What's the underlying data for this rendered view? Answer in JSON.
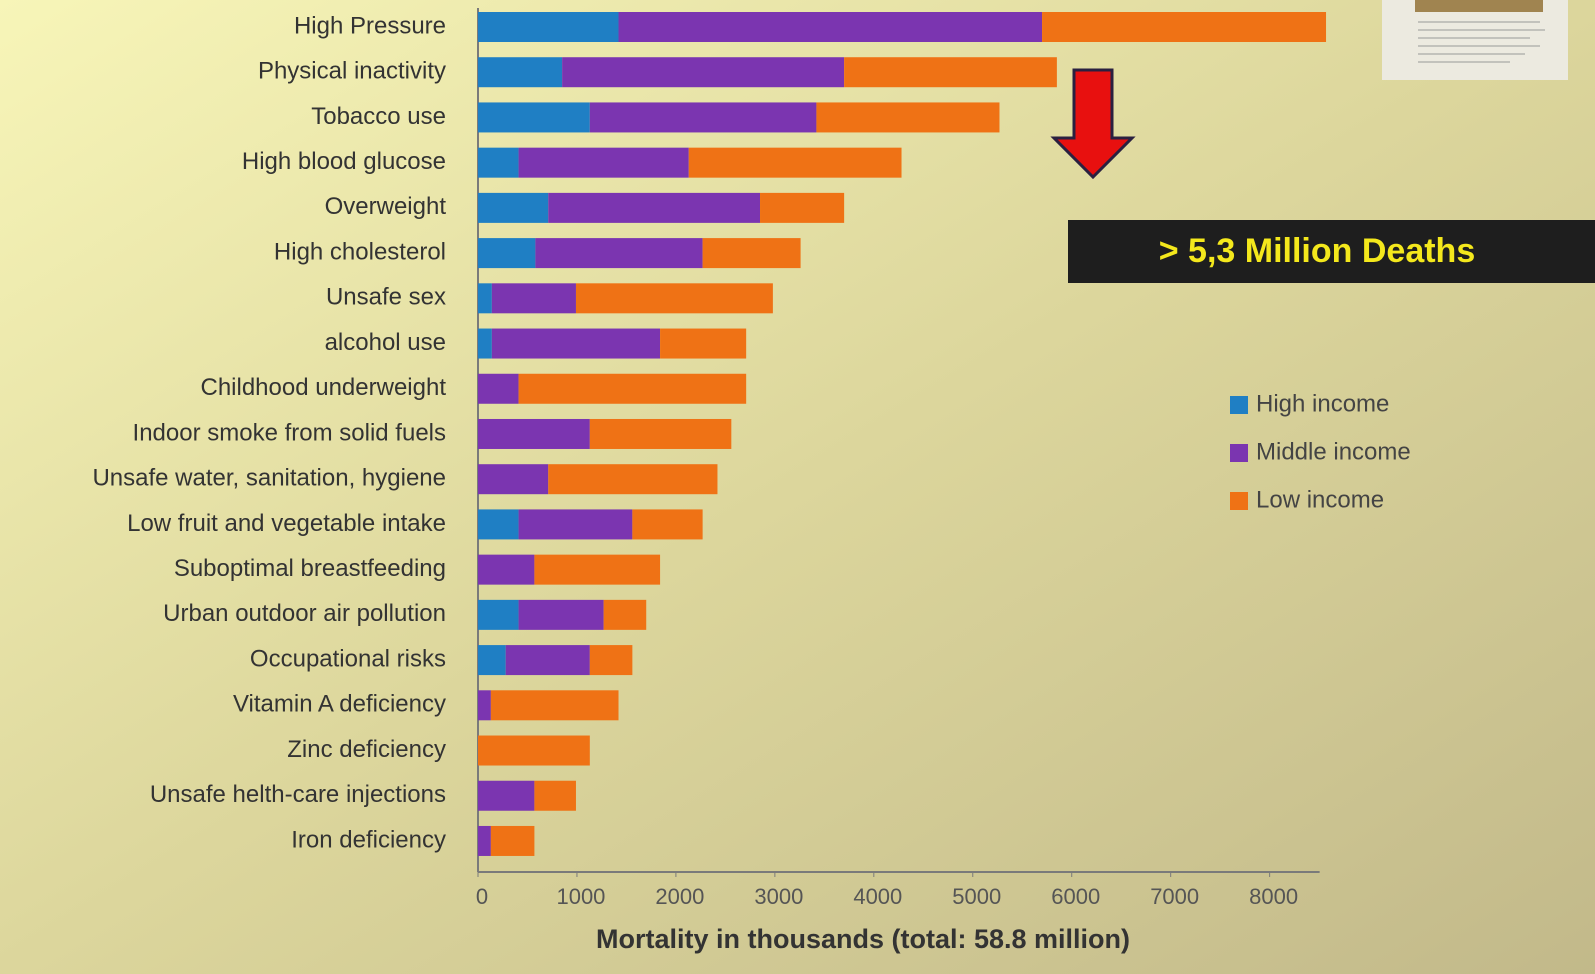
{
  "chart_data": {
    "type": "stacked-bar-horizontal",
    "x_label": "Mortality in thousands (total: 58.8 million)",
    "annotation": "> 5,3 Million Deaths",
    "categories": [
      "High Pressure",
      "Physical inactivity",
      "Tobacco use",
      "High blood glucose",
      "Overweight",
      "High cholesterol",
      "Unsafe sex",
      "alcohol use",
      "Childhood underweight",
      "Indoor smoke from solid fuels",
      "Unsafe water, sanitation, hygiene",
      "Low fruit and vegetable intake",
      "Suboptimal breastfeeding",
      "Urban outdoor air pollution",
      "Occupational risks",
      "Vitamin A deficiency",
      "Zinc deficiency",
      "Unsafe helth-care injections",
      "Iron deficiency"
    ],
    "series": [
      {
        "name": "High income",
        "color": "#1f7fc4",
        "values": [
          1420,
          850,
          1130,
          410,
          710,
          580,
          140,
          140,
          0,
          0,
          0,
          410,
          0,
          410,
          280,
          0,
          0,
          0,
          0
        ]
      },
      {
        "name": "Middle income",
        "color": "#7b35b0",
        "values": [
          4280,
          2850,
          2290,
          1720,
          2140,
          1690,
          850,
          1700,
          410,
          1130,
          710,
          1150,
          570,
          860,
          850,
          130,
          0,
          570,
          130
        ]
      },
      {
        "name": "Low income",
        "color": "#ef7215",
        "values": [
          2870,
          2150,
          1850,
          2150,
          850,
          990,
          1990,
          870,
          2300,
          1430,
          1710,
          710,
          1270,
          430,
          430,
          1290,
          1130,
          420,
          440
        ]
      }
    ],
    "xlim": [
      0,
      8600
    ],
    "xticks": [
      0,
      1000,
      2000,
      3000,
      4000,
      5000,
      6000,
      7000,
      8000
    ]
  }
}
